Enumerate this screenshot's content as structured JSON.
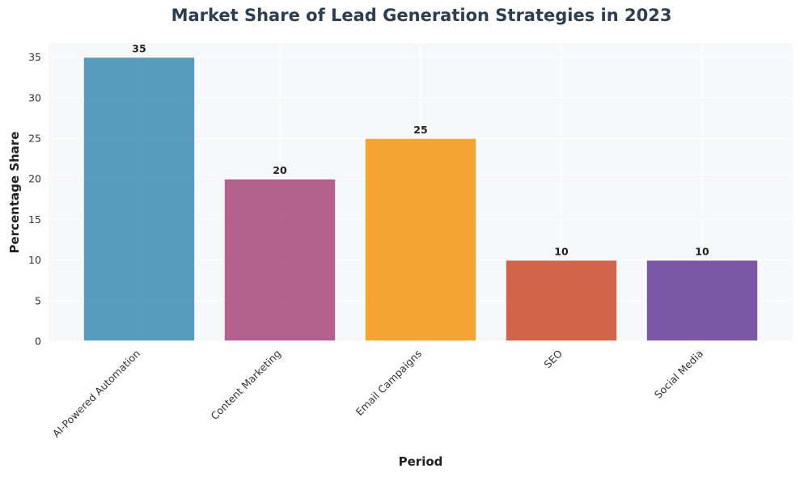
{
  "chart_data": {
    "type": "bar",
    "title": "Market Share of Lead Generation Strategies in 2023",
    "xlabel": "Period",
    "ylabel": "Percentage Share",
    "categories": [
      "AI-Powered Automation",
      "Content Marketing",
      "Email Campaigns",
      "SEO",
      "Social Media"
    ],
    "values": [
      35,
      20,
      25,
      10,
      10
    ],
    "colors": [
      "#2E86AB",
      "#A23B72",
      "#F18F01",
      "#C73E1D",
      "#5C2E91"
    ],
    "ylim": [
      0,
      36.75
    ],
    "yticks": [
      0,
      5,
      10,
      15,
      20,
      25,
      30,
      35
    ],
    "grid": true,
    "background": "#f7f8fa"
  }
}
